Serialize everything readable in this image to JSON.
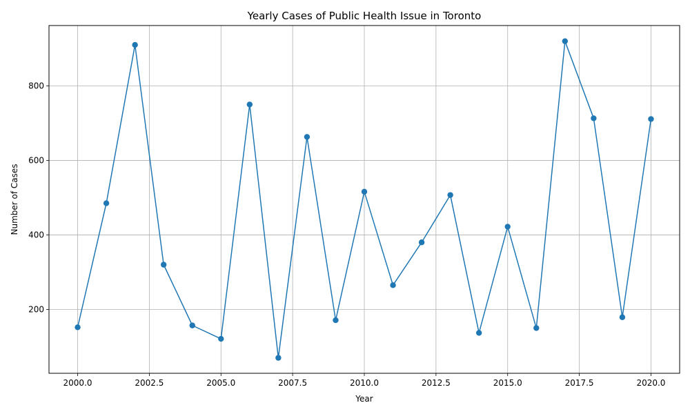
{
  "chart_data": {
    "type": "line",
    "title": "Yearly Cases of Public Health Issue in Toronto",
    "xlabel": "Year",
    "ylabel": "Number of Cases",
    "x": [
      2000,
      2001,
      2002,
      2003,
      2004,
      2005,
      2006,
      2007,
      2008,
      2009,
      2010,
      2011,
      2012,
      2013,
      2014,
      2015,
      2016,
      2017,
      2018,
      2019,
      2020
    ],
    "series": [
      {
        "values": [
          152,
          485,
          910,
          320,
          157,
          121,
          750,
          70,
          663,
          171,
          516,
          265,
          380,
          507,
          137,
          422,
          150,
          920,
          713,
          179,
          711
        ],
        "color": "#1f77b4",
        "marker": "circle"
      }
    ],
    "xlim": [
      1999.0,
      2021.0
    ],
    "ylim": [
      28.5,
      962.0
    ],
    "x_ticks": [
      2000.0,
      2002.5,
      2005.0,
      2007.5,
      2010.0,
      2012.5,
      2015.0,
      2017.5,
      2020.0
    ],
    "x_tick_labels": [
      "2000.0",
      "2002.5",
      "2005.0",
      "2007.5",
      "2010.0",
      "2012.5",
      "2015.0",
      "2017.5",
      "2020.0"
    ],
    "y_ticks": [
      200,
      400,
      600,
      800
    ],
    "y_tick_labels": [
      "200",
      "400",
      "600",
      "800"
    ],
    "grid": true,
    "grid_color": "#b0b0b0"
  }
}
